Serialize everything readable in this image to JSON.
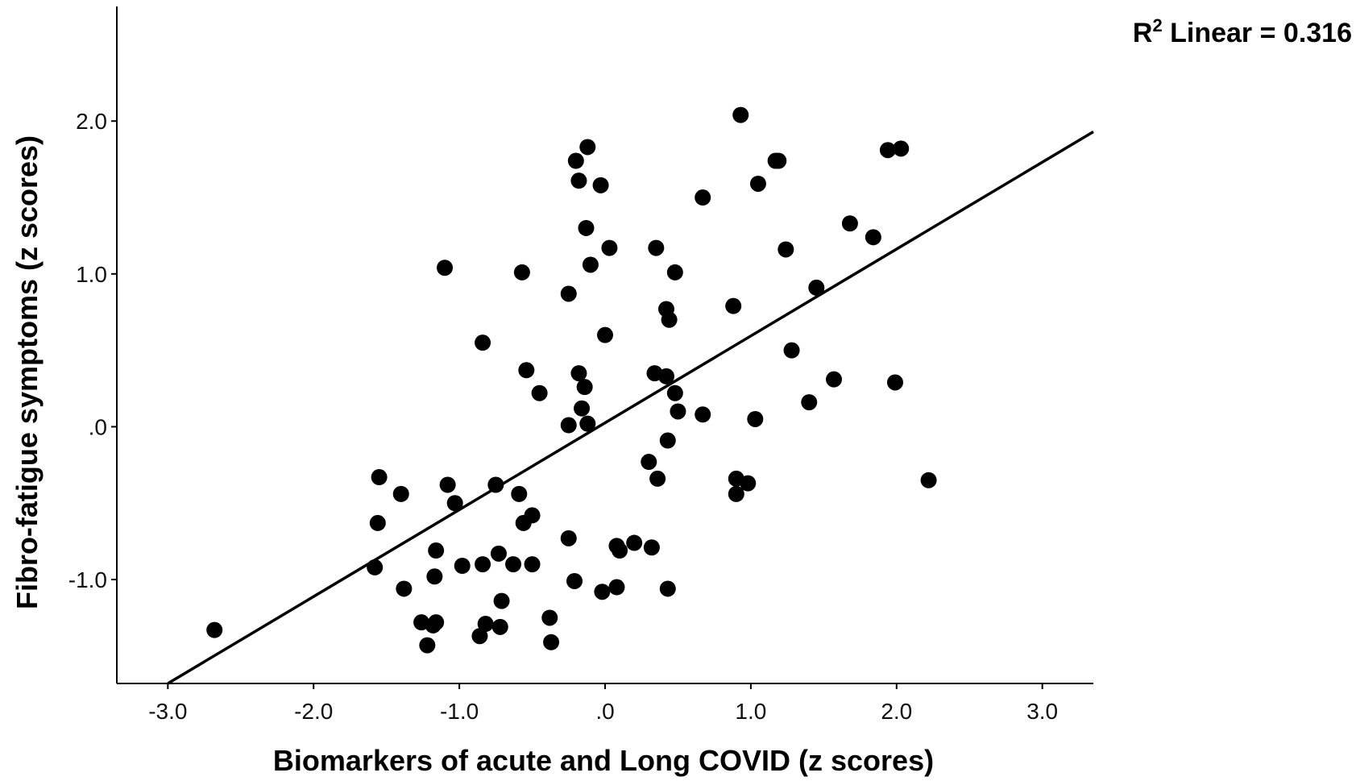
{
  "chart_data": {
    "type": "scatter",
    "title": "",
    "xlabel": "Biomarkers of acute and Long COVID (z scores)",
    "ylabel": "Fibro-fatigue symptoms (z scores)",
    "xlim": [
      -3.35,
      3.35
    ],
    "ylim": [
      -1.68,
      2.75
    ],
    "x_ticks": [
      -3.0,
      -2.0,
      -1.0,
      0.0,
      1.0,
      2.0,
      3.0
    ],
    "x_tick_labels": [
      "-3.0",
      "-2.0",
      "-1.0",
      ".0",
      "1.0",
      "2.0",
      "3.0"
    ],
    "y_ticks": [
      -1.0,
      0.0,
      1.0,
      2.0
    ],
    "y_tick_labels": [
      "-1.0",
      ".0",
      "1.0",
      "2.0"
    ],
    "grid": false,
    "annotation": {
      "r2_prefix": "R",
      "r2_sup": "2",
      "r2_text": " Linear = 0.316"
    },
    "fit_line": {
      "x0": -3.0,
      "y0": -1.68,
      "x1": 3.35,
      "y1": 1.93
    },
    "marker_color": "#000000",
    "points": [
      [
        -2.68,
        -1.33
      ],
      [
        -1.55,
        -0.33
      ],
      [
        -1.56,
        -0.63
      ],
      [
        -1.4,
        -0.44
      ],
      [
        -1.58,
        -0.92
      ],
      [
        -1.38,
        -1.06
      ],
      [
        -1.26,
        -1.28
      ],
      [
        -1.22,
        -1.43
      ],
      [
        -1.18,
        -1.3
      ],
      [
        -1.16,
        -1.28
      ],
      [
        -1.16,
        -0.81
      ],
      [
        -1.17,
        -0.98
      ],
      [
        -1.08,
        -0.38
      ],
      [
        -1.03,
        -0.5
      ],
      [
        -0.98,
        -0.91
      ],
      [
        -1.1,
        1.04
      ],
      [
        -0.84,
        0.55
      ],
      [
        -0.84,
        -0.9
      ],
      [
        -0.75,
        -0.38
      ],
      [
        -0.73,
        -0.83
      ],
      [
        -0.71,
        -1.14
      ],
      [
        -0.82,
        -1.29
      ],
      [
        -0.86,
        -1.37
      ],
      [
        -0.72,
        -1.31
      ],
      [
        -0.63,
        -0.9
      ],
      [
        -0.59,
        -0.44
      ],
      [
        -0.56,
        -0.63
      ],
      [
        -0.5,
        -0.58
      ],
      [
        -0.5,
        -0.9
      ],
      [
        -0.57,
        1.01
      ],
      [
        -0.54,
        0.37
      ],
      [
        -0.45,
        0.22
      ],
      [
        -0.38,
        -1.25
      ],
      [
        -0.37,
        -1.41
      ],
      [
        -0.25,
        0.87
      ],
      [
        -0.25,
        0.01
      ],
      [
        -0.25,
        -0.73
      ],
      [
        -0.21,
        -1.01
      ],
      [
        -0.2,
        1.74
      ],
      [
        -0.18,
        1.61
      ],
      [
        -0.18,
        0.35
      ],
      [
        -0.16,
        0.12
      ],
      [
        -0.14,
        0.26
      ],
      [
        -0.12,
        1.83
      ],
      [
        -0.13,
        1.3
      ],
      [
        -0.1,
        1.06
      ],
      [
        -0.12,
        0.02
      ],
      [
        -0.03,
        1.58
      ],
      [
        0.0,
        0.6
      ],
      [
        0.03,
        1.17
      ],
      [
        -0.02,
        -1.08
      ],
      [
        0.08,
        -0.78
      ],
      [
        0.1,
        -0.81
      ],
      [
        0.08,
        -1.05
      ],
      [
        0.2,
        -0.76
      ],
      [
        0.3,
        -0.23
      ],
      [
        0.32,
        -0.79
      ],
      [
        0.34,
        0.35
      ],
      [
        0.35,
        1.17
      ],
      [
        0.36,
        -0.34
      ],
      [
        0.42,
        0.77
      ],
      [
        0.42,
        0.33
      ],
      [
        0.44,
        0.7
      ],
      [
        0.43,
        -0.09
      ],
      [
        0.43,
        -1.06
      ],
      [
        0.48,
        1.01
      ],
      [
        0.48,
        0.22
      ],
      [
        0.5,
        0.1
      ],
      [
        0.67,
        0.08
      ],
      [
        0.67,
        1.5
      ],
      [
        0.88,
        0.79
      ],
      [
        0.9,
        -0.34
      ],
      [
        0.9,
        -0.44
      ],
      [
        0.93,
        2.04
      ],
      [
        0.98,
        -0.37
      ],
      [
        1.03,
        0.05
      ],
      [
        1.05,
        1.59
      ],
      [
        1.17,
        1.74
      ],
      [
        1.19,
        1.74
      ],
      [
        1.24,
        1.16
      ],
      [
        1.28,
        0.5
      ],
      [
        1.4,
        0.16
      ],
      [
        1.45,
        0.91
      ],
      [
        1.57,
        0.31
      ],
      [
        1.68,
        1.33
      ],
      [
        1.84,
        1.24
      ],
      [
        1.94,
        1.81
      ],
      [
        2.03,
        1.82
      ],
      [
        1.99,
        0.29
      ],
      [
        2.22,
        -0.35
      ]
    ]
  }
}
